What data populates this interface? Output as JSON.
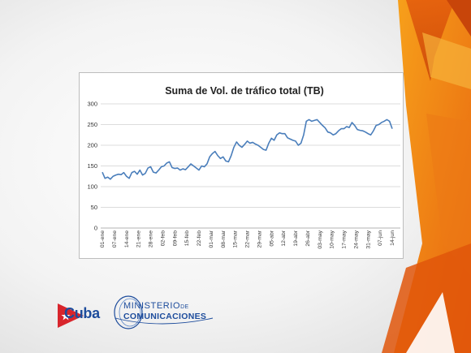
{
  "colors": {
    "line": "#4a7ebb",
    "grid": "#d0d0d0",
    "accent_dark": "#e05a0c",
    "accent_light": "#f59a23",
    "brand_blue": "#1d4c9c",
    "brand_red": "#d8252c"
  },
  "logos": {
    "cuba": "Cuba",
    "ministerio_line1": "MINISTERIO",
    "ministerio_de": "DE",
    "ministerio_line2": "COMUNICACIONES",
    "cuba_icon": "cuba-flag-triangle-icon",
    "ministerio_icon": "ministerio-swirl-icon"
  },
  "chart_data": {
    "type": "line",
    "title": "Suma de Vol. de tráfico total (TB)",
    "xlabel": "",
    "ylabel": "",
    "ylim": [
      0,
      300
    ],
    "yticks": [
      0,
      50,
      100,
      150,
      200,
      250,
      300
    ],
    "grid": true,
    "legend": "none",
    "x_tick_labels": [
      "01-ene",
      "07-ene",
      "14-ene",
      "21-ene",
      "28-ene",
      "02-feb",
      "09-feb",
      "15-feb",
      "22-feb",
      "01-mar",
      "08-mar",
      "15-mar",
      "22-mar",
      "29-mar",
      "05-abr",
      "12-abr",
      "19-abr",
      "26-abr",
      "03-may",
      "10-may",
      "17-may",
      "24-may",
      "31-may",
      "07-jun",
      "14-jun"
    ],
    "series": [
      {
        "values": [
          135,
          120,
          123,
          118,
          125,
          128,
          130,
          129,
          134,
          125,
          120,
          134,
          137,
          130,
          140,
          128,
          132,
          145,
          148,
          135,
          133,
          140,
          148,
          150,
          157,
          160,
          146,
          144,
          145,
          140,
          143,
          141,
          148,
          155,
          150,
          145,
          140,
          150,
          148,
          155,
          172,
          180,
          185,
          175,
          168,
          172,
          162,
          160,
          175,
          195,
          208,
          200,
          195,
          202,
          210,
          205,
          207,
          203,
          200,
          195,
          190,
          188,
          205,
          217,
          212,
          225,
          230,
          228,
          228,
          218,
          215,
          212,
          210,
          200,
          205,
          225,
          258,
          262,
          258,
          260,
          262,
          255,
          248,
          242,
          232,
          230,
          225,
          228,
          235,
          240,
          240,
          245,
          243,
          255,
          248,
          238,
          236,
          235,
          232,
          228,
          225,
          235,
          248,
          250,
          255,
          258,
          262,
          258,
          240
        ]
      }
    ]
  }
}
